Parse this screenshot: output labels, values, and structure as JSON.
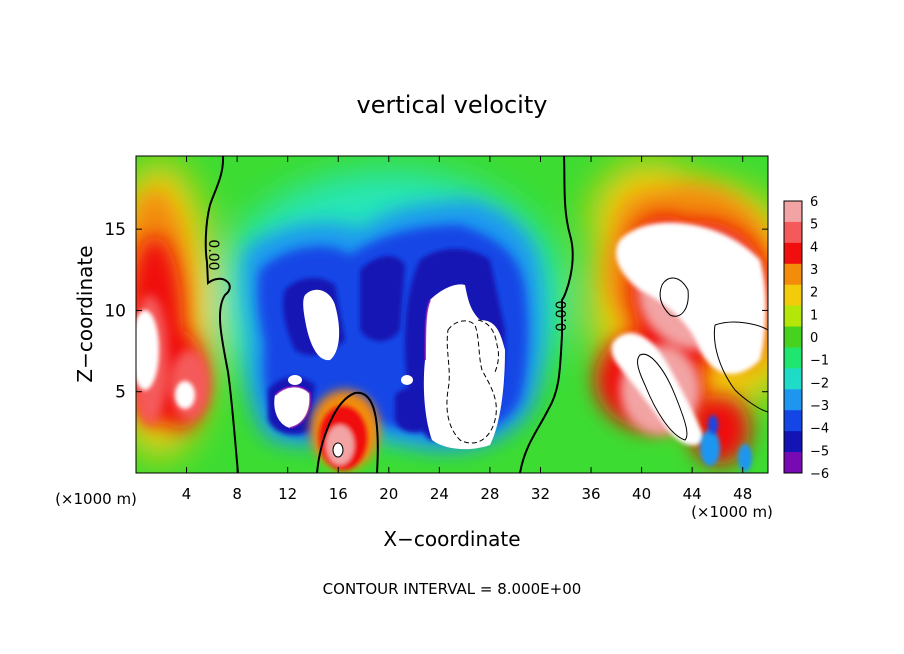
{
  "chart_data": {
    "type": "heatmap",
    "title": "vertical velocity",
    "xlabel": "X−coordinate",
    "ylabel": "Z−coordinate",
    "x_unit_left": "(×1000 m)",
    "x_unit_right": "(×1000 m)",
    "footer": "CONTOUR INTERVAL = 8.000E+00",
    "xlim": [
      0,
      50
    ],
    "ylim": [
      0,
      19.5
    ],
    "x_ticks": [
      4,
      8,
      12,
      16,
      20,
      24,
      28,
      32,
      36,
      40,
      44,
      48
    ],
    "x_tick_labels": [
      "4",
      "8",
      "12",
      "16",
      "20",
      "24",
      "28",
      "32",
      "36",
      "40",
      "44",
      "48"
    ],
    "y_ticks": [
      5,
      10,
      15
    ],
    "y_tick_labels": [
      "5",
      "10",
      "15"
    ],
    "colorbar": {
      "range": [
        -6,
        6
      ],
      "labels": [
        "6",
        "5",
        "4",
        "3",
        "2",
        "1",
        "0",
        "−1",
        "−2",
        "−3",
        "−4",
        "−5",
        "−6"
      ],
      "values": [
        6,
        5,
        4,
        3,
        2,
        1,
        0,
        -1,
        -2,
        -3,
        -4,
        -5,
        -6
      ],
      "colors": [
        "#f2a3a3",
        "#f55a5a",
        "#f00e0e",
        "#f28c0a",
        "#f2cc0a",
        "#b4e60a",
        "#46d21e",
        "#1ee66e",
        "#1edcc8",
        "#1e96f0",
        "#1446e6",
        "#1414b4",
        "#780ab4"
      ],
      "above_max_color": "#ffffff",
      "below_min_color": "#ffffff"
    },
    "zero_contour_labels": [
      "0.00",
      "0.00"
    ],
    "background_color": "#3cdc32"
  }
}
